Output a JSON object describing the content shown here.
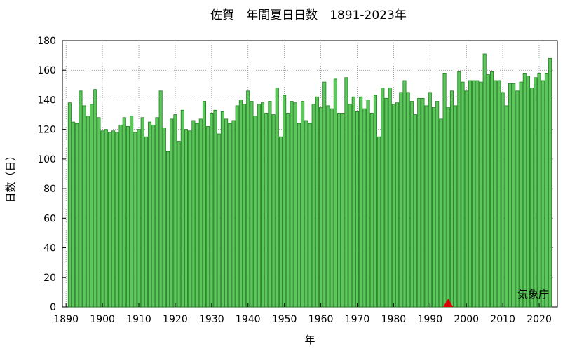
{
  "chart_data": {
    "type": "bar",
    "title": "佐賀　年間夏日日数　1891-2023年",
    "xlabel": "年",
    "ylabel": "日数（日）",
    "source_label": "気象庁",
    "xlim": [
      1889,
      2025
    ],
    "ylim": [
      0,
      180
    ],
    "x_ticks": [
      1890,
      1900,
      1910,
      1920,
      1930,
      1940,
      1950,
      1960,
      1970,
      1980,
      1990,
      2000,
      2010,
      2020
    ],
    "y_ticks": [
      0,
      20,
      40,
      60,
      80,
      100,
      120,
      140,
      160,
      180
    ],
    "grid": true,
    "bar_color": "#5cc85c",
    "bar_edge_color": "#1f7a1f",
    "marker": {
      "year": 1995,
      "shape": "triangle",
      "color": "#dd0000"
    },
    "start_year": 1891,
    "values": [
      138,
      125,
      124,
      146,
      136,
      129,
      137,
      147,
      128,
      119,
      120,
      118,
      119,
      118,
      123,
      128,
      122,
      129,
      118,
      120,
      128,
      115,
      125,
      123,
      128,
      146,
      121,
      105,
      127,
      130,
      112,
      133,
      120,
      119,
      126,
      124,
      127,
      139,
      122,
      131,
      133,
      117,
      132,
      127,
      124,
      126,
      136,
      140,
      137,
      146,
      139,
      129,
      137,
      138,
      131,
      139,
      130,
      148,
      115,
      143,
      131,
      139,
      138,
      124,
      139,
      126,
      124,
      137,
      142,
      135,
      152,
      136,
      134,
      154,
      131,
      131,
      155,
      137,
      142,
      132,
      142,
      134,
      140,
      131,
      143,
      115,
      148,
      141,
      148,
      137,
      138,
      145,
      153,
      145,
      139,
      130,
      141,
      141,
      136,
      145,
      135,
      139,
      127,
      158,
      135,
      146,
      136,
      159,
      152,
      146,
      153,
      153,
      153,
      152,
      171,
      157,
      159,
      153,
      153,
      145,
      136,
      151,
      151,
      146,
      152,
      158,
      156,
      148,
      155,
      158,
      153,
      158,
      168
    ]
  }
}
